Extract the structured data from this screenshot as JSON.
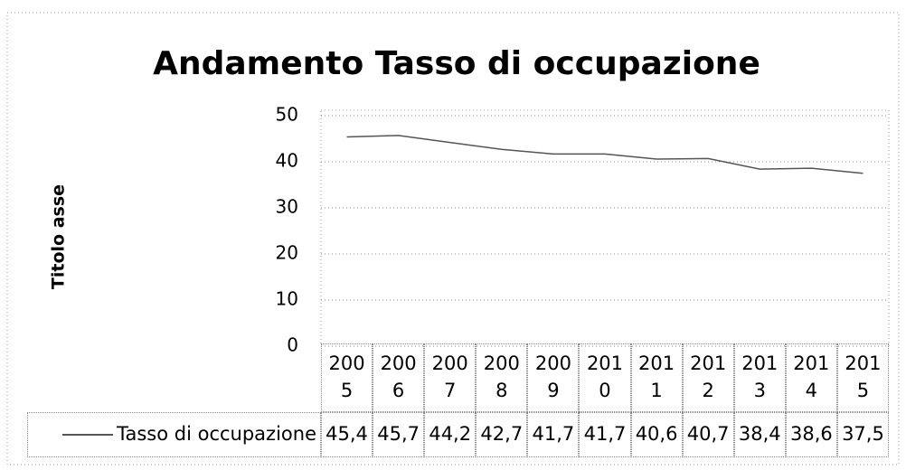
{
  "chart_data": {
    "type": "line",
    "title": "Andamento Tasso di occupazione",
    "y_label": "Titolo asse",
    "categories": [
      "2005",
      "2006",
      "2007",
      "2008",
      "2009",
      "2010",
      "2011",
      "2012",
      "2013",
      "2014",
      "2015"
    ],
    "series": [
      {
        "name": "Tasso di occupazione",
        "color": "#555555",
        "values": [
          45.4,
          45.7,
          44.2,
          42.7,
          41.7,
          41.7,
          40.6,
          40.7,
          38.4,
          38.6,
          37.5
        ],
        "value_labels": [
          "45,4",
          "45,7",
          "44,2",
          "42,7",
          "41,7",
          "41,7",
          "40,6",
          "40,7",
          "38,4",
          "38,6",
          "37,5"
        ]
      }
    ],
    "ylim": [
      0,
      50
    ],
    "yticks": [
      0,
      10,
      20,
      30,
      40,
      50
    ],
    "grid": true,
    "data_table": true
  }
}
